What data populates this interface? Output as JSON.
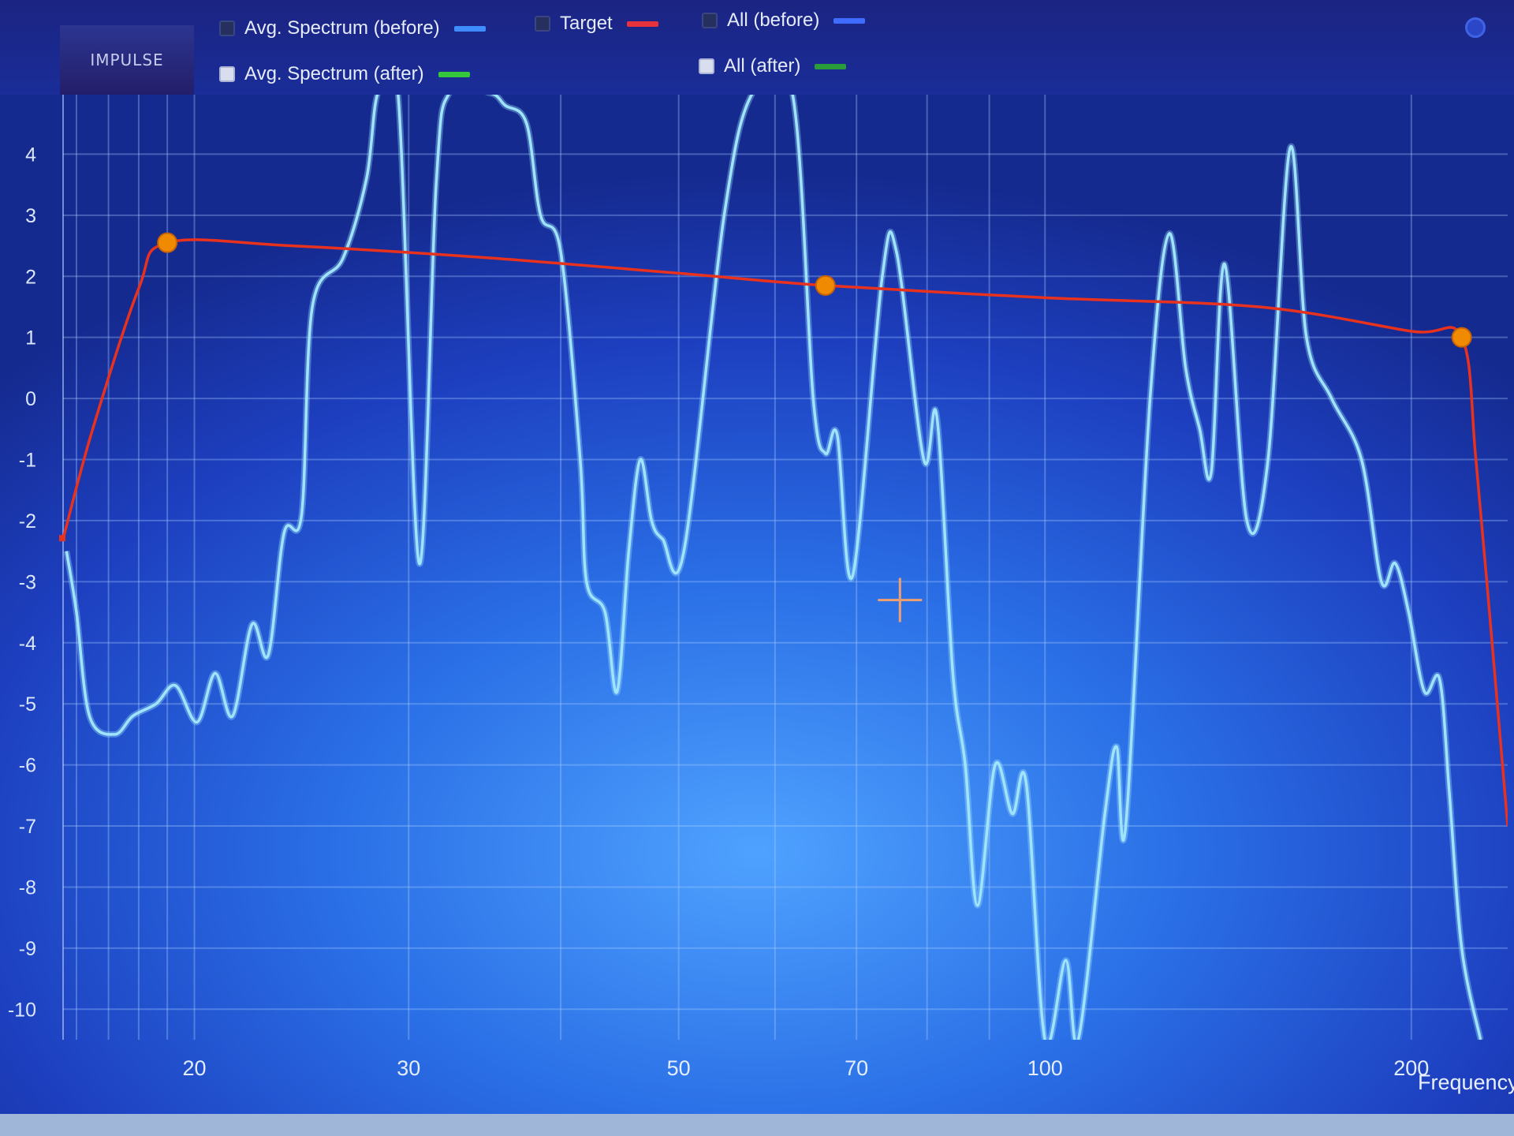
{
  "toolbar": {
    "impulse_label": "IMPULSE"
  },
  "legend": [
    {
      "label": "Avg. Spectrum (before)",
      "checked": true,
      "color": "#3f8cff"
    },
    {
      "label": "Target",
      "checked": true,
      "color": "#e8323c"
    },
    {
      "label": "All (before)",
      "checked": true,
      "color": "#3f6dff"
    },
    {
      "label": "Avg. Spectrum (after)",
      "checked": false,
      "color": "#35c83a"
    },
    {
      "label": "All (after)",
      "checked": false,
      "color": "#2a9c3a"
    }
  ],
  "icons": {
    "settings": "gear-icon",
    "cursor": "crosshair-icon"
  },
  "chart_data": {
    "type": "line",
    "xlabel": "Frequency",
    "ylabel": "",
    "x_scale": "log",
    "xlim": [
      15.6,
      240
    ],
    "ylim": [
      -10.5,
      5
    ],
    "x_ticks": [
      20,
      30,
      50,
      70,
      100,
      200
    ],
    "y_ticks": [
      4,
      3,
      2,
      1,
      0,
      -1,
      -2,
      -3,
      -4,
      -5,
      -6,
      -7,
      -8,
      -9,
      -10
    ],
    "grid": true,
    "colors": {
      "measured": "#9fe4ff",
      "target": "#e8321e",
      "handle": "#f08a00"
    },
    "series": [
      {
        "name": "Avg. Spectrum (before)",
        "points": [
          [
            15.7,
            -2.5
          ],
          [
            16.0,
            -3.5
          ],
          [
            16.4,
            -5.2
          ],
          [
            17.2,
            -5.5
          ],
          [
            17.8,
            -5.2
          ],
          [
            18.6,
            -5.0
          ],
          [
            19.3,
            -4.7
          ],
          [
            20.1,
            -5.3
          ],
          [
            20.8,
            -4.5
          ],
          [
            21.5,
            -5.2
          ],
          [
            22.3,
            -3.7
          ],
          [
            23.0,
            -4.2
          ],
          [
            23.7,
            -2.2
          ],
          [
            24.5,
            -1.9
          ],
          [
            25.0,
            1.5
          ],
          [
            26.5,
            2.3
          ],
          [
            27.7,
            3.6
          ],
          [
            28.3,
            5.0
          ],
          [
            29.4,
            5.0
          ],
          [
            30.6,
            -2.7
          ],
          [
            31.6,
            3.5
          ],
          [
            32.4,
            5.0
          ],
          [
            35.0,
            5.0
          ],
          [
            36.0,
            4.8
          ],
          [
            37.5,
            4.5
          ],
          [
            38.5,
            3.0
          ],
          [
            40.0,
            2.4
          ],
          [
            41.5,
            -1.0
          ],
          [
            42.0,
            -3.0
          ],
          [
            43.5,
            -3.5
          ],
          [
            44.5,
            -4.8
          ],
          [
            45.5,
            -2.5
          ],
          [
            46.5,
            -1.0
          ],
          [
            47.5,
            -2.0
          ],
          [
            48.5,
            -2.3
          ],
          [
            50.5,
            -2.5
          ],
          [
            54.5,
            3.0
          ],
          [
            57.5,
            5.0
          ],
          [
            62.0,
            5.0
          ],
          [
            64.5,
            0.0
          ],
          [
            66.0,
            -0.9
          ],
          [
            67.5,
            -0.6
          ],
          [
            69.5,
            -2.9
          ],
          [
            73.5,
            2.0
          ],
          [
            75.5,
            2.4
          ],
          [
            79.5,
            -1.0
          ],
          [
            81.5,
            -0.3
          ],
          [
            84.0,
            -4.5
          ],
          [
            86.0,
            -6.0
          ],
          [
            88.0,
            -8.3
          ],
          [
            91.0,
            -6.0
          ],
          [
            94.0,
            -6.8
          ],
          [
            96.5,
            -6.3
          ],
          [
            100.0,
            -10.5
          ],
          [
            104.0,
            -9.2
          ],
          [
            106.5,
            -10.5
          ],
          [
            112.0,
            -6.8
          ],
          [
            114.5,
            -5.7
          ],
          [
            116.5,
            -7.0
          ],
          [
            122.0,
            0.0
          ],
          [
            126.5,
            2.7
          ],
          [
            130.5,
            0.5
          ],
          [
            134.0,
            -0.5
          ],
          [
            137.0,
            -1.2
          ],
          [
            140.5,
            2.2
          ],
          [
            146.5,
            -2.0
          ],
          [
            152.5,
            -1.0
          ],
          [
            159.0,
            4.1
          ],
          [
            164.0,
            1.0
          ],
          [
            172.0,
            0.0
          ],
          [
            182.0,
            -1.0
          ],
          [
            189.0,
            -3.0
          ],
          [
            194.0,
            -2.7
          ],
          [
            199.0,
            -3.5
          ],
          [
            205.0,
            -4.8
          ],
          [
            211.0,
            -4.6
          ],
          [
            215.0,
            -6.5
          ],
          [
            220.0,
            -9.0
          ],
          [
            228.0,
            -10.5
          ]
        ]
      },
      {
        "name": "Target",
        "points": [
          [
            15.6,
            -2.3
          ],
          [
            16.5,
            -0.5
          ],
          [
            18.0,
            1.8
          ],
          [
            19.0,
            2.55
          ],
          [
            24.0,
            2.5
          ],
          [
            35.0,
            2.3
          ],
          [
            50.0,
            2.05
          ],
          [
            66.0,
            1.85
          ],
          [
            100.0,
            1.65
          ],
          [
            150.0,
            1.5
          ],
          [
            200.0,
            1.1
          ],
          [
            220.0,
            1.0
          ],
          [
            226.0,
            -1.0
          ],
          [
            233.0,
            -4.0
          ],
          [
            240.0,
            -7.0
          ]
        ],
        "handles": [
          [
            19.0,
            2.55
          ],
          [
            66.0,
            1.85
          ],
          [
            220.0,
            1.0
          ]
        ]
      }
    ],
    "cursor_marker": [
      76.0,
      -3.3
    ]
  }
}
